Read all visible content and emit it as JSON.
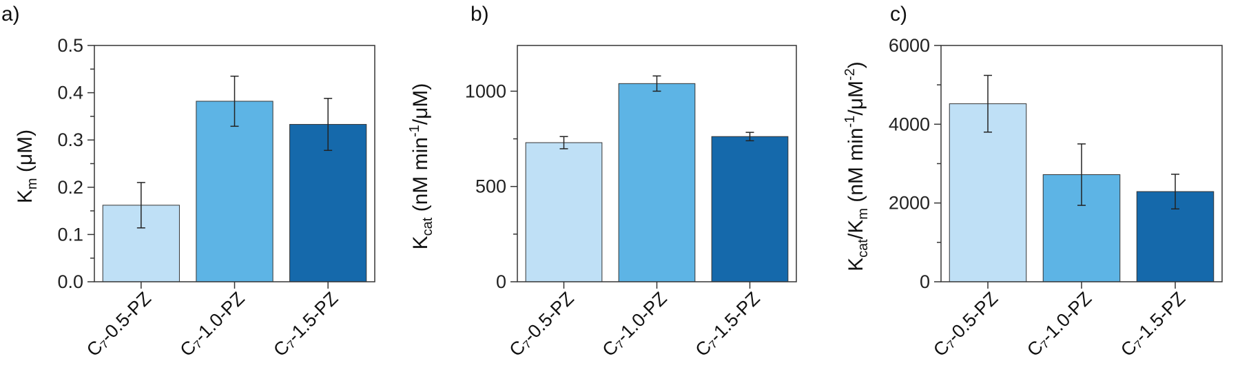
{
  "colors": {
    "light": "#BFE0F6",
    "mid": "#5DB4E5",
    "dark": "#1569AB"
  },
  "chart_data": [
    {
      "type": "bar",
      "panel_label": "a)",
      "categories": [
        "C₇-0.5-PZ",
        "C₇-1.0-PZ",
        "C₇-1.5-PZ"
      ],
      "values": [
        0.162,
        0.382,
        0.333
      ],
      "errors": [
        0.048,
        0.053,
        0.055
      ],
      "ylabel_main": "K",
      "ylabel_sub": "m",
      "ylabel_rest": " (μM)",
      "ylim": [
        0,
        0.5
      ],
      "yticks": [
        "0.0",
        "0.1",
        "0.2",
        "0.3",
        "0.4",
        "0.5"
      ]
    },
    {
      "type": "bar",
      "panel_label": "b)",
      "categories": [
        "C₇-0.5-PZ",
        "C₇-1.0-PZ",
        "C₇-1.5-PZ"
      ],
      "values": [
        730,
        1040,
        762
      ],
      "errors": [
        32,
        40,
        22
      ],
      "ylabel_main": "K",
      "ylabel_sub": "cat",
      "ylabel_rest": " (nM min",
      "ylabel_sup": "-1",
      "ylabel_tail": "/μM)",
      "ylim": [
        0,
        1240
      ],
      "yticks": [
        "0",
        "500",
        "1000"
      ]
    },
    {
      "type": "bar",
      "panel_label": "c)",
      "categories": [
        "C₇-0.5-PZ",
        "C₇-1.0-PZ",
        "C₇-1.5-PZ"
      ],
      "values": [
        4520,
        2720,
        2290
      ],
      "errors": [
        720,
        780,
        440
      ],
      "ylabel_main": "K",
      "ylabel_sub": "cat",
      "ylabel_mid": "/K",
      "ylabel_sub2": "m",
      "ylabel_rest": " (nM min",
      "ylabel_sup": "-1",
      "ylabel_mid2": "/μM",
      "ylabel_sup2": "-2",
      "ylabel_tail": ")",
      "ylim": [
        0,
        6000
      ],
      "yticks": [
        "0",
        "2000",
        "4000",
        "6000"
      ]
    }
  ]
}
